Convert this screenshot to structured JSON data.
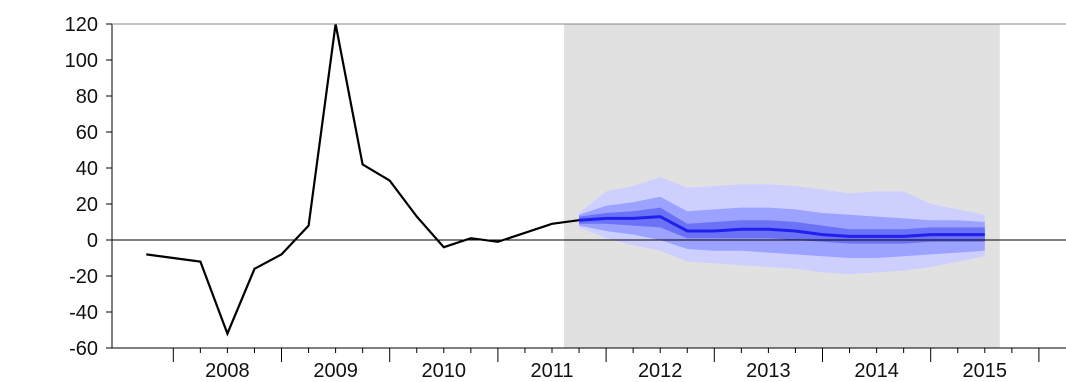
{
  "chart_data": {
    "type": "line",
    "title": "",
    "xlabel": "",
    "ylabel": "",
    "ylim": [
      -60,
      120
    ],
    "yticks": [
      -60,
      -40,
      -20,
      0,
      20,
      40,
      60,
      80,
      100,
      120
    ],
    "x_tick_labels": [
      "2008",
      "2009",
      "2010",
      "2011",
      "2012",
      "2013",
      "2014",
      "2015"
    ],
    "grid": false,
    "zero_line": true,
    "forecast_start": "2011Q4",
    "colors": {
      "actual_line": "#000000",
      "forecast_shade": "#e1e1e1",
      "band_outer": "#cdd0ff",
      "band_mid": "#9ba2ff",
      "band_inner": "#6b72f6",
      "median": "#2020ee"
    },
    "series": [
      {
        "kind": "actual",
        "x": [
          "2007Q4",
          "2008Q1",
          "2008Q2",
          "2008Q3",
          "2008Q4",
          "2009Q1",
          "2009Q2",
          "2009Q3",
          "2009Q4",
          "2010Q1",
          "2010Q2",
          "2010Q3",
          "2010Q4",
          "2011Q1",
          "2011Q2",
          "2011Q3",
          "2011Q4"
        ],
        "values": [
          -8,
          -10,
          -12,
          -52,
          -16,
          -8,
          8,
          120,
          42,
          33,
          13,
          -4,
          1,
          -1,
          4,
          9,
          11
        ]
      },
      {
        "kind": "forecast_fan",
        "x": [
          "2011Q4",
          "2012Q1",
          "2012Q2",
          "2012Q3",
          "2012Q4",
          "2013Q1",
          "2013Q2",
          "2013Q3",
          "2013Q4",
          "2014Q1",
          "2014Q2",
          "2014Q3",
          "2014Q4",
          "2015Q1",
          "2015Q2",
          "2015Q3"
        ],
        "median": [
          11,
          12,
          12,
          13,
          5,
          5,
          6,
          6,
          5,
          3,
          2,
          2,
          2,
          3,
          3,
          3
        ],
        "inner_low": [
          9,
          9,
          8,
          7,
          1,
          1,
          1,
          1,
          0,
          -1,
          -2,
          -2,
          -2,
          -1,
          -1,
          -1
        ],
        "inner_high": [
          13,
          15,
          16,
          18,
          9,
          10,
          11,
          11,
          10,
          8,
          6,
          6,
          6,
          7,
          7,
          7
        ],
        "mid_low": [
          8,
          5,
          3,
          0,
          -5,
          -6,
          -6,
          -7,
          -8,
          -9,
          -10,
          -10,
          -9,
          -8,
          -7,
          -6
        ],
        "mid_high": [
          14,
          19,
          21,
          24,
          16,
          17,
          18,
          18,
          17,
          15,
          14,
          13,
          12,
          11,
          11,
          10
        ],
        "outer_low": [
          7,
          1,
          -3,
          -6,
          -12,
          -13,
          -14,
          -15,
          -16,
          -18,
          -19,
          -18,
          -17,
          -15,
          -12,
          -9
        ],
        "outer_high": [
          15,
          27,
          30,
          35,
          29,
          30,
          31,
          31,
          30,
          28,
          26,
          27,
          27,
          20,
          17,
          14
        ]
      }
    ]
  }
}
